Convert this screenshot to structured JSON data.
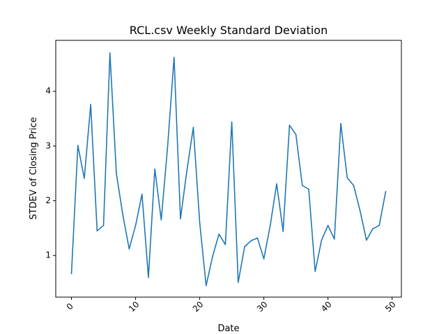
{
  "chart_data": {
    "type": "line",
    "title": "RCL.csv Weekly Standard Deviation",
    "xlabel": "Date",
    "ylabel": "STDEV of Closing Price",
    "xlim": [
      -2.45,
      51.45
    ],
    "ylim": [
      0.24,
      4.93
    ],
    "xticks": [
      0,
      10,
      20,
      30,
      40,
      50
    ],
    "yticks": [
      1,
      2,
      3,
      4
    ],
    "grid": false,
    "legend": "none",
    "line_color": "#1f77b4",
    "series": [
      {
        "x": [
          0,
          1,
          2,
          3,
          4,
          5,
          6,
          7,
          8,
          9,
          10,
          11,
          12,
          13,
          14,
          15,
          16,
          17,
          18,
          19,
          20,
          21,
          22,
          23,
          24,
          25,
          26,
          27,
          28,
          29,
          30,
          31,
          32,
          33,
          34,
          35,
          36,
          37,
          38,
          39,
          40,
          41,
          42,
          43,
          44,
          45,
          46,
          47,
          48,
          49
        ],
        "values": [
          0.67,
          3.01,
          2.41,
          3.76,
          1.45,
          1.55,
          4.7,
          2.5,
          1.75,
          1.12,
          1.55,
          2.12,
          0.6,
          2.58,
          1.65,
          3.0,
          4.62,
          1.67,
          2.55,
          3.34,
          1.6,
          0.45,
          0.98,
          1.39,
          1.2,
          3.44,
          0.51,
          1.16,
          1.27,
          1.32,
          0.94,
          1.55,
          2.31,
          1.44,
          3.38,
          3.21,
          2.28,
          2.21,
          0.71,
          1.28,
          1.55,
          1.3,
          3.41,
          2.42,
          2.28,
          1.82,
          1.28,
          1.49,
          1.55,
          2.17
        ]
      }
    ]
  }
}
